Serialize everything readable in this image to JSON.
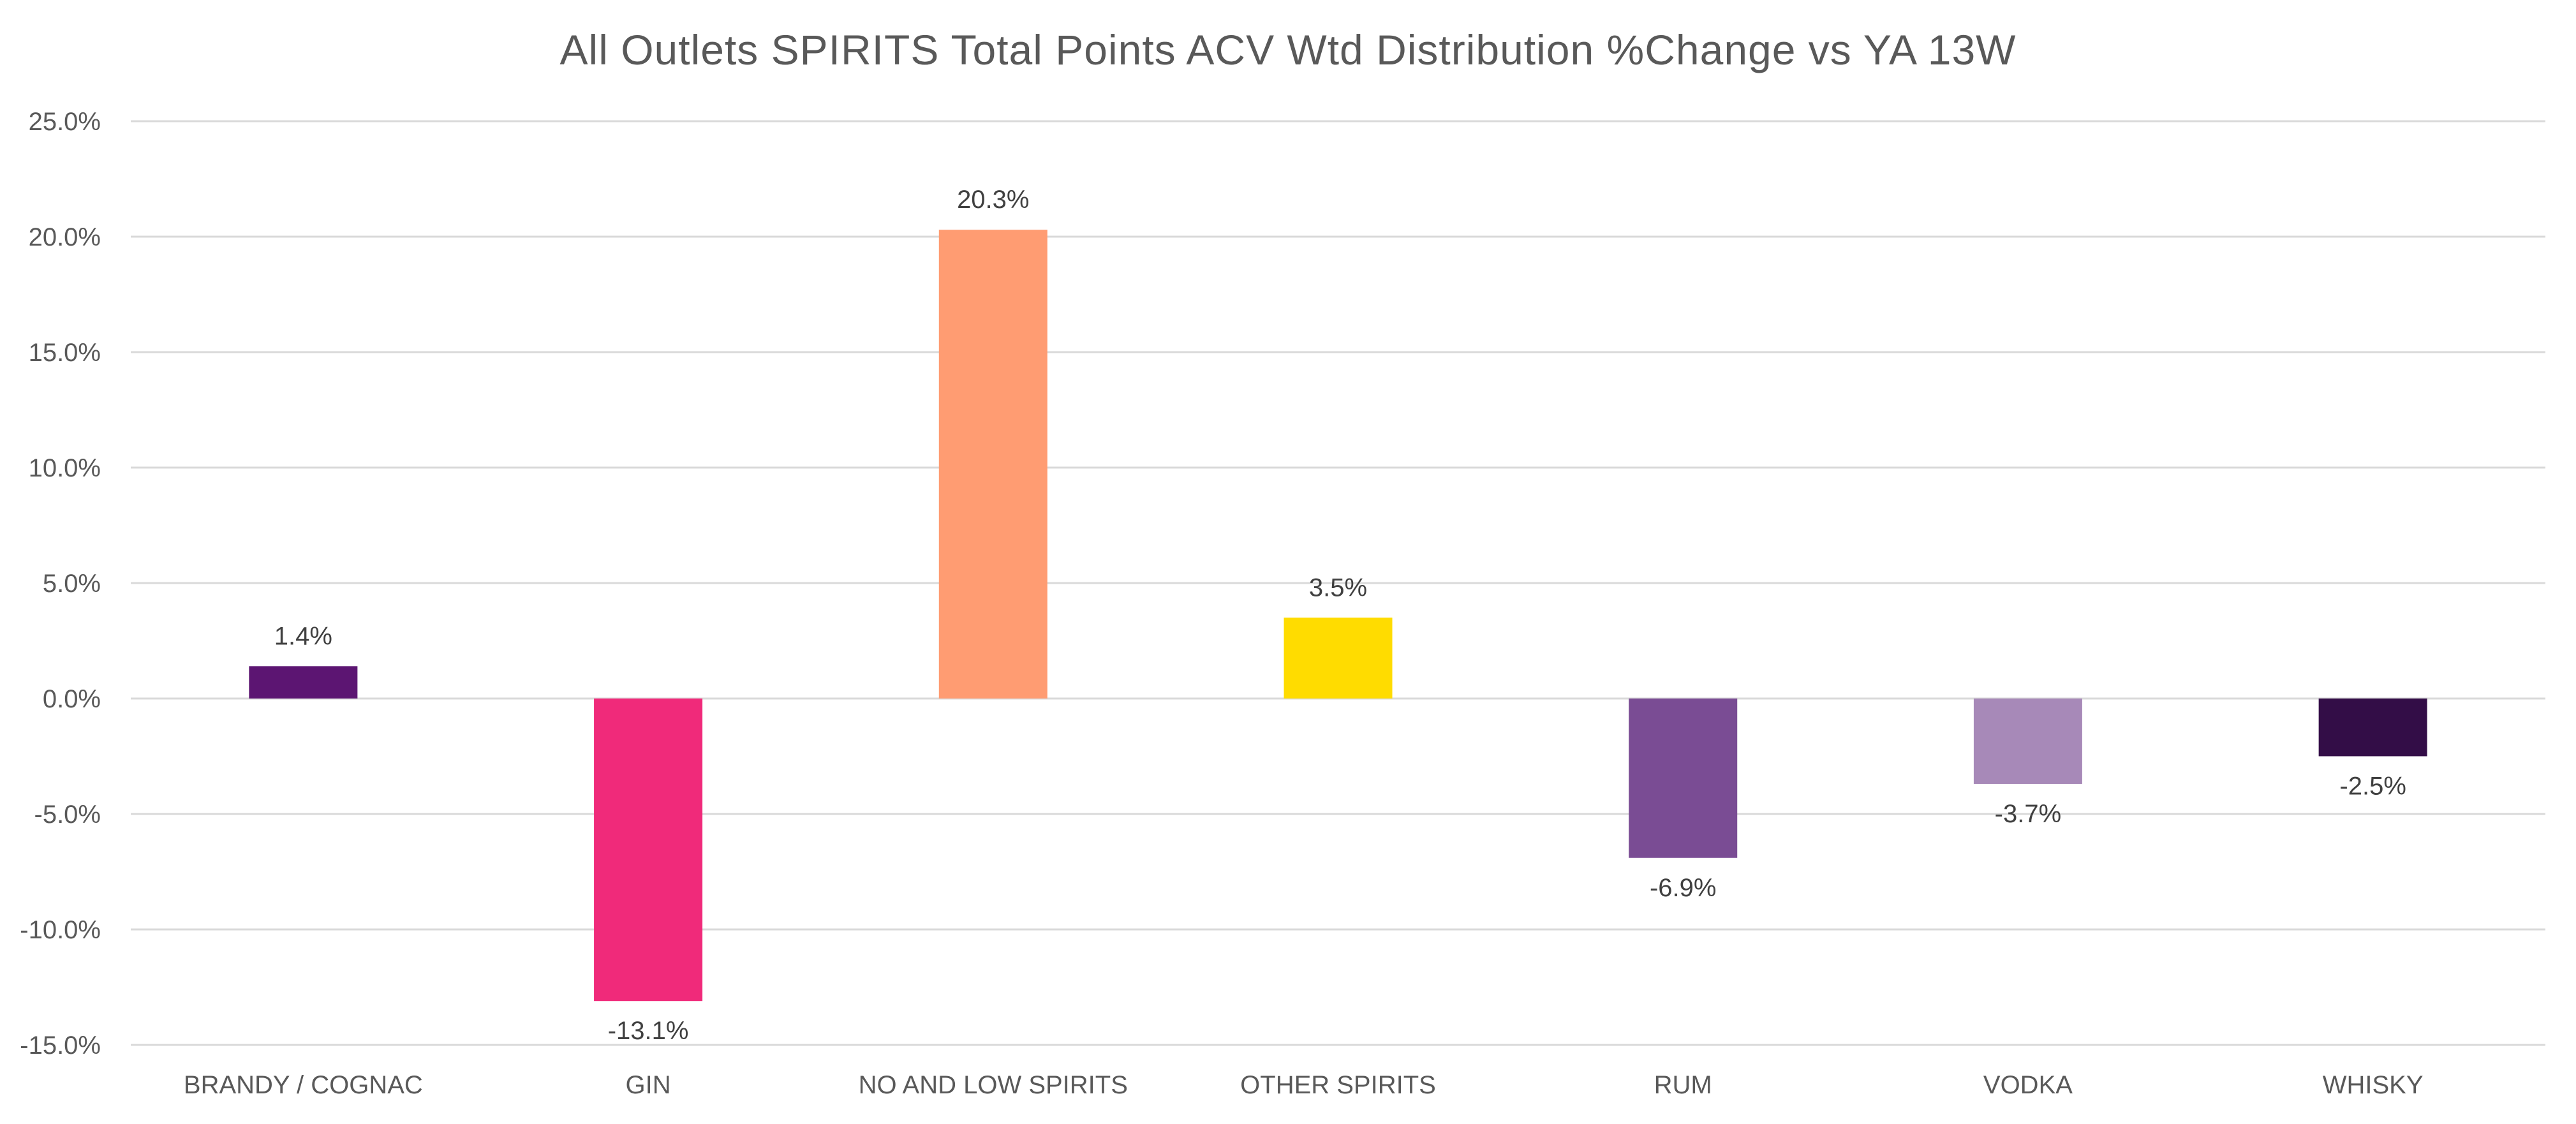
{
  "chart_data": {
    "type": "bar",
    "title": "All Outlets SPIRITS Total Points ACV Wtd Distribution %Change vs YA  13W",
    "xlabel": "",
    "ylabel": "",
    "categories": [
      "BRANDY / COGNAC",
      "GIN",
      "NO AND LOW SPIRITS",
      "OTHER SPIRITS",
      "RUM",
      "VODKA",
      "WHISKY"
    ],
    "values": [
      1.4,
      -13.1,
      20.3,
      3.5,
      -6.9,
      -3.7,
      -2.5
    ],
    "data_labels": [
      "1.4%",
      "-13.1%",
      "20.3%",
      "3.5%",
      "-6.9%",
      "-3.7%",
      "-2.5%"
    ],
    "colors": [
      "#5c1572",
      "#f02a7a",
      "#ff9c72",
      "#ffdc00",
      "#7a4c94",
      "#a789b8",
      "#330d47"
    ],
    "ylim": [
      -15,
      25
    ],
    "yticks": [
      25,
      20,
      15,
      10,
      5,
      0,
      -5,
      -10,
      -15
    ],
    "ytick_labels": [
      "25.0%",
      "20.0%",
      "15.0%",
      "10.0%",
      "5.0%",
      "0.0%",
      "-5.0%",
      "-10.0%",
      "-15.0%"
    ],
    "grid": true,
    "legend": "none"
  }
}
